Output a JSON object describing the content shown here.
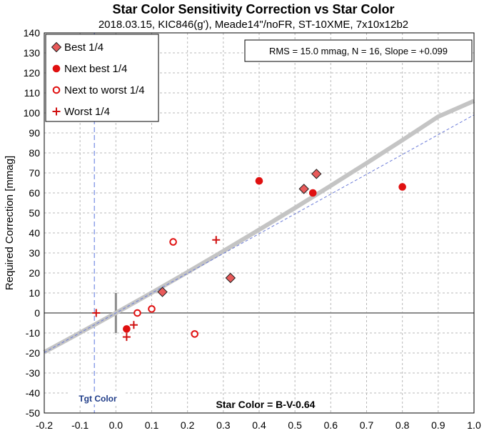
{
  "chart_data": {
    "type": "scatter",
    "title": "Star Color Sensitivity Correction vs Star Color",
    "subtitle": "2018.03.15, KIC846(g'), Meade14\"/noFR, ST-10XME, 7x10x12b2",
    "ylabel": "Required Correction [mmag]",
    "xlabel": "",
    "xlim": [
      -0.2,
      1.0
    ],
    "ylim": [
      -50,
      140
    ],
    "x_ticks": [
      -0.2,
      -0.1,
      0.0,
      0.1,
      0.2,
      0.3,
      0.4,
      0.5,
      0.6,
      0.7,
      0.8,
      0.9,
      1.0
    ],
    "x_tick_labels": [
      "-0.2",
      "-0.1",
      "0.0",
      "0.1",
      "0.2",
      "0.3",
      "0.4",
      "0.5",
      "0.6",
      "0.7",
      "0.8",
      "0.9",
      "1.0"
    ],
    "y_ticks": [
      -50,
      -40,
      -30,
      -20,
      -10,
      0,
      10,
      20,
      30,
      40,
      50,
      60,
      70,
      80,
      90,
      100,
      110,
      120,
      130,
      140
    ],
    "grid": true,
    "legend_position": "top-left",
    "stats_text": "RMS = 15.0 mmag, N = 16, Slope = +0.099",
    "x_formula_text": "Star Color = B-V-0.64",
    "target_label": "Tgt Color",
    "target_x": -0.06,
    "series": [
      {
        "name": "Best 1/4",
        "marker": "diamond",
        "color": "#e85a5a",
        "points": [
          [
            0.13,
            10.5
          ],
          [
            0.32,
            17.5
          ],
          [
            0.525,
            62
          ],
          [
            0.56,
            69.5
          ]
        ]
      },
      {
        "name": "Next best 1/4",
        "marker": "filled-circle",
        "color": "#e01010",
        "points": [
          [
            0.03,
            -8
          ],
          [
            0.4,
            66
          ],
          [
            0.55,
            60
          ],
          [
            0.8,
            63
          ]
        ]
      },
      {
        "name": "Next to worst 1/4",
        "marker": "open-circle",
        "color": "#e01010",
        "points": [
          [
            0.16,
            35.5
          ],
          [
            0.06,
            0
          ],
          [
            0.1,
            2
          ],
          [
            0.22,
            -10.5
          ]
        ]
      },
      {
        "name": "Worst 1/4",
        "marker": "plus",
        "color": "#d01010",
        "points": [
          [
            -0.055,
            0
          ],
          [
            0.28,
            36.5
          ],
          [
            0.05,
            -6
          ],
          [
            0.03,
            -12
          ]
        ]
      }
    ],
    "fit_curve": {
      "color": "#c4c4c4",
      "points": [
        [
          -0.2,
          -19.6
        ],
        [
          -0.1,
          -9.9
        ],
        [
          0.0,
          0
        ],
        [
          0.1,
          10.1
        ],
        [
          0.2,
          20.4
        ],
        [
          0.3,
          30.9
        ],
        [
          0.4,
          41.6
        ],
        [
          0.5,
          52.5
        ],
        [
          0.6,
          63.6
        ],
        [
          0.7,
          74.9
        ],
        [
          0.8,
          86.4
        ],
        [
          0.9,
          98.1
        ],
        [
          1.0,
          106
        ]
      ]
    },
    "fit_line": {
      "color": "#6b7bd8",
      "points": [
        [
          -0.2,
          -19.8
        ],
        [
          1.0,
          99
        ]
      ]
    }
  }
}
